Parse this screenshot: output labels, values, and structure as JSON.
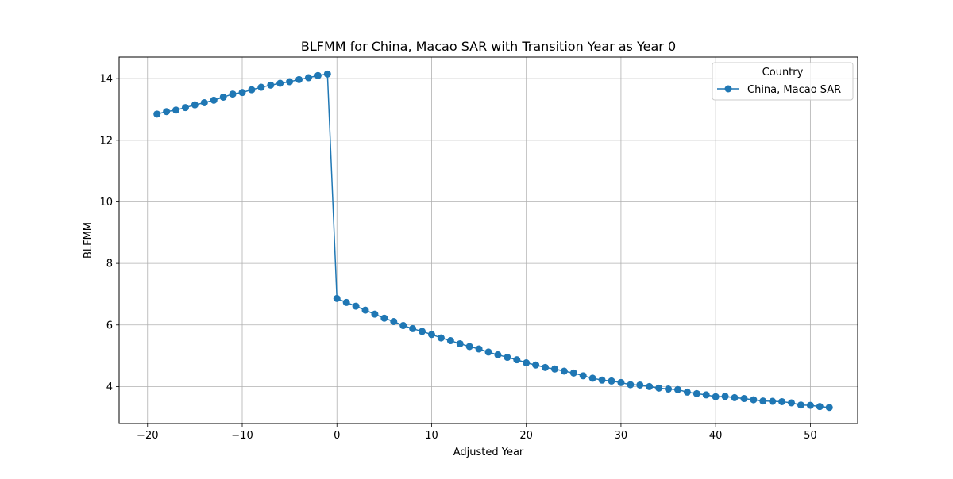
{
  "chart_data": {
    "type": "line",
    "title": "BLFMM for China, Macao SAR with Transition Year as Year 0",
    "xlabel": "Adjusted Year",
    "ylabel": "BLFMM",
    "xlim": [
      -23,
      55
    ],
    "ylim": [
      2.8,
      14.7
    ],
    "x_ticks": [
      -20,
      -10,
      0,
      10,
      20,
      30,
      40,
      50
    ],
    "x_tick_labels": [
      "−20",
      "−10",
      "0",
      "10",
      "20",
      "30",
      "40",
      "50"
    ],
    "y_ticks": [
      4,
      6,
      8,
      10,
      12,
      14
    ],
    "y_tick_labels": [
      "4",
      "6",
      "8",
      "10",
      "12",
      "14"
    ],
    "grid": true,
    "legend": {
      "title": "Country",
      "placement": "upper right",
      "entries": [
        "China, Macao SAR"
      ]
    },
    "series": [
      {
        "name": "China, Macao SAR",
        "color": "#1f77b4",
        "marker": "circle",
        "x": [
          -19,
          -18,
          -17,
          -16,
          -15,
          -14,
          -13,
          -12,
          -11,
          -10,
          -9,
          -8,
          -7,
          -6,
          -5,
          -4,
          -3,
          -2,
          -1,
          0,
          1,
          2,
          3,
          4,
          5,
          6,
          7,
          8,
          9,
          10,
          11,
          12,
          13,
          14,
          15,
          16,
          17,
          18,
          19,
          20,
          21,
          22,
          23,
          24,
          25,
          26,
          27,
          28,
          29,
          30,
          31,
          32,
          33,
          34,
          35,
          36,
          37,
          38,
          39,
          40,
          41,
          42,
          43,
          44,
          45,
          46,
          47,
          48,
          49,
          50,
          51,
          52
        ],
        "y": [
          12.85,
          12.93,
          12.98,
          13.06,
          13.15,
          13.22,
          13.3,
          13.4,
          13.5,
          13.55,
          13.64,
          13.72,
          13.79,
          13.85,
          13.9,
          13.97,
          14.03,
          14.1,
          14.15,
          6.86,
          6.73,
          6.61,
          6.48,
          6.35,
          6.22,
          6.11,
          5.98,
          5.88,
          5.79,
          5.69,
          5.58,
          5.49,
          5.39,
          5.3,
          5.22,
          5.12,
          5.03,
          4.95,
          4.87,
          4.77,
          4.7,
          4.62,
          4.57,
          4.5,
          4.44,
          4.35,
          4.27,
          4.21,
          4.18,
          4.13,
          4.06,
          4.05,
          4.0,
          3.95,
          3.92,
          3.9,
          3.82,
          3.77,
          3.73,
          3.67,
          3.68,
          3.64,
          3.61,
          3.57,
          3.53,
          3.52,
          3.51,
          3.47,
          3.4,
          3.39,
          3.35,
          3.32
        ]
      }
    ]
  }
}
